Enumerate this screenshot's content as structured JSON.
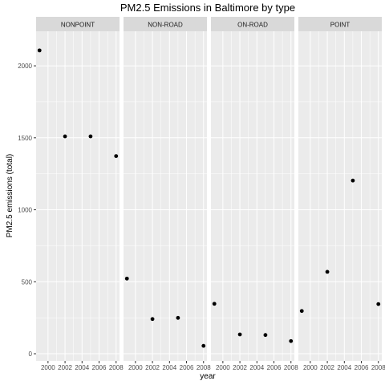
{
  "chart_data": {
    "type": "scatter",
    "title": "PM2.5 Emissions in Baltimore by type",
    "xlabel": "year",
    "ylabel": "PM2.5 emissions (total)",
    "xlim": [
      1998.6,
      2008.4
    ],
    "ylim": [
      -50,
      2240
    ],
    "xticks": [
      2000,
      2002,
      2004,
      2006,
      2008
    ],
    "xtick_labels": [
      "2000",
      "2002",
      "2004",
      "2006",
      "2008"
    ],
    "yticks": [
      0,
      500,
      1000,
      1500,
      2000
    ],
    "ytick_labels": [
      "0",
      "500",
      "1000",
      "1500",
      "2000"
    ],
    "grid": true,
    "panels": [
      {
        "name": "NONPOINT",
        "points": [
          {
            "x": 1999,
            "y": 2107
          },
          {
            "x": 2002,
            "y": 1510
          },
          {
            "x": 2005,
            "y": 1510
          },
          {
            "x": 2008,
            "y": 1373
          }
        ]
      },
      {
        "name": "NON-ROAD",
        "points": [
          {
            "x": 1999,
            "y": 522
          },
          {
            "x": 2002,
            "y": 241
          },
          {
            "x": 2005,
            "y": 249
          },
          {
            "x": 2008,
            "y": 55
          }
        ]
      },
      {
        "name": "ON-ROAD",
        "points": [
          {
            "x": 1999,
            "y": 347
          },
          {
            "x": 2002,
            "y": 134
          },
          {
            "x": 2005,
            "y": 130
          },
          {
            "x": 2008,
            "y": 88
          }
        ]
      },
      {
        "name": "POINT",
        "points": [
          {
            "x": 1999,
            "y": 297
          },
          {
            "x": 2002,
            "y": 569
          },
          {
            "x": 2005,
            "y": 1203
          },
          {
            "x": 2008,
            "y": 345
          }
        ]
      }
    ]
  },
  "colors": {
    "panel_bg": "#ebebeb",
    "strip_bg": "#d9d9d9",
    "grid_major": "#ffffff",
    "point": "#000000"
  }
}
